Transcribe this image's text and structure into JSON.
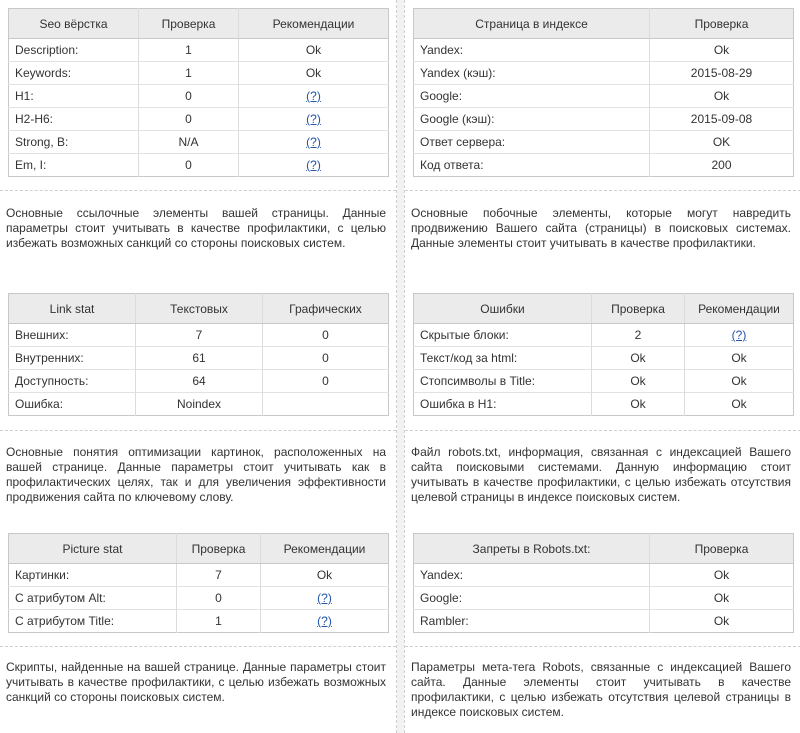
{
  "seo": {
    "headers": [
      "Seo вёрстка",
      "Проверка",
      "Рекомендации"
    ],
    "rows": [
      {
        "name": "Description:",
        "value": "1",
        "rec": "Ok"
      },
      {
        "name": "Keywords:",
        "value": "1",
        "rec": "Ok"
      },
      {
        "name": "H1:",
        "value": "0",
        "rec": "(?)"
      },
      {
        "name": "H2-H6:",
        "value": "0",
        "rec": "(?)"
      },
      {
        "name": "Strong, B:",
        "value": "N/A",
        "rec": "(?)"
      },
      {
        "name": "Em, I:",
        "value": "0",
        "rec": "(?)"
      }
    ]
  },
  "seo_desc": "Основные ссылочные элементы вашей страницы. Данные параметры стоит учитывать в качестве профилактики, с целью избежать возможных санкций со стороны поисковых систем.",
  "index": {
    "headers": [
      "Страница в индексе",
      "Проверка"
    ],
    "rows": [
      {
        "name": "Yandex:",
        "value": "Ok"
      },
      {
        "name": "Yandex (кэш):",
        "value": "2015-08-29"
      },
      {
        "name": "Google:",
        "value": "Ok"
      },
      {
        "name": "Google (кэш):",
        "value": "2015-09-08"
      },
      {
        "name": "Ответ сервера:",
        "value": "OK"
      },
      {
        "name": "Код ответа:",
        "value": "200"
      }
    ]
  },
  "index_desc": "Основные побочные элементы, которые могут навредить продвижению Вашего сайта (страницы) в поисковых системах. Данные элементы стоит учитывать в качестве профилактики.",
  "links": {
    "headers": [
      "Link stat",
      "Текстовых",
      "Графических"
    ],
    "rows": [
      {
        "name": "Внешних:",
        "text": "7",
        "graphic": "0"
      },
      {
        "name": "Внутренних:",
        "text": "61",
        "graphic": "0"
      },
      {
        "name": "Доступность:",
        "text": "64",
        "graphic": "0"
      },
      {
        "name": "Ошибка:",
        "text": "Noindex",
        "graphic": ""
      }
    ]
  },
  "links_desc": "Основные понятия оптимизации картинок, расположенных на вашей странице. Данные параметры стоит учитывать как в профилактических целях, так и для увеличения эффективности продвижения сайта по ключевому слову.",
  "errors": {
    "headers": [
      "Ошибки",
      "Проверка",
      "Рекомендации"
    ],
    "rows": [
      {
        "name": "Скрытые блоки:",
        "value": "2",
        "rec": "(?)"
      },
      {
        "name": "Текст/код за html:",
        "value": "Ok",
        "rec": "Ok"
      },
      {
        "name": "Стопсимволы в Title:",
        "value": "Ok",
        "rec": "Ok"
      },
      {
        "name": "Ошибка в H1:",
        "value": "Ok",
        "rec": "Ok"
      }
    ]
  },
  "errors_desc": "Файл robots.txt, информация, связанная с индексацией Вашего сайта поисковыми системами. Данную информацию стоит учитывать в качестве профилактики, с целью избежать отсутствия целевой страницы в индексе поисковых систем.",
  "pictures": {
    "headers": [
      "Picture stat",
      "Проверка",
      "Рекомендации"
    ],
    "rows": [
      {
        "name": "Картинки:",
        "value": "7",
        "rec": "Ok"
      },
      {
        "name": "С атрибутом Alt:",
        "value": "0",
        "rec": "(?)"
      },
      {
        "name": "С атрибутом Title:",
        "value": "1",
        "rec": "(?)"
      }
    ]
  },
  "pictures_desc": "Скрипты, найденные на вашей странице. Данные параметры стоит учитывать в качестве профилактики, с целью избежать возможных санкций со стороны поисковых систем.",
  "robots": {
    "headers": [
      "Запреты в Robots.txt:",
      "Проверка"
    ],
    "rows": [
      {
        "name": "Yandex:",
        "value": "Ok"
      },
      {
        "name": "Google:",
        "value": "Ok"
      },
      {
        "name": "Rambler:",
        "value": "Ok"
      }
    ]
  },
  "robots_desc": "Параметры мета-тега Robots, связанные с индексацией Вашего сайта. Данные элементы стоит учитывать в качестве профилактики, с целью избежать отсутствия целевой страницы в индексе поисковых систем.",
  "colors": {
    "ok": "#1d8a1d",
    "help_link": "#2255aa",
    "header_bg": "#ebebeb"
  }
}
